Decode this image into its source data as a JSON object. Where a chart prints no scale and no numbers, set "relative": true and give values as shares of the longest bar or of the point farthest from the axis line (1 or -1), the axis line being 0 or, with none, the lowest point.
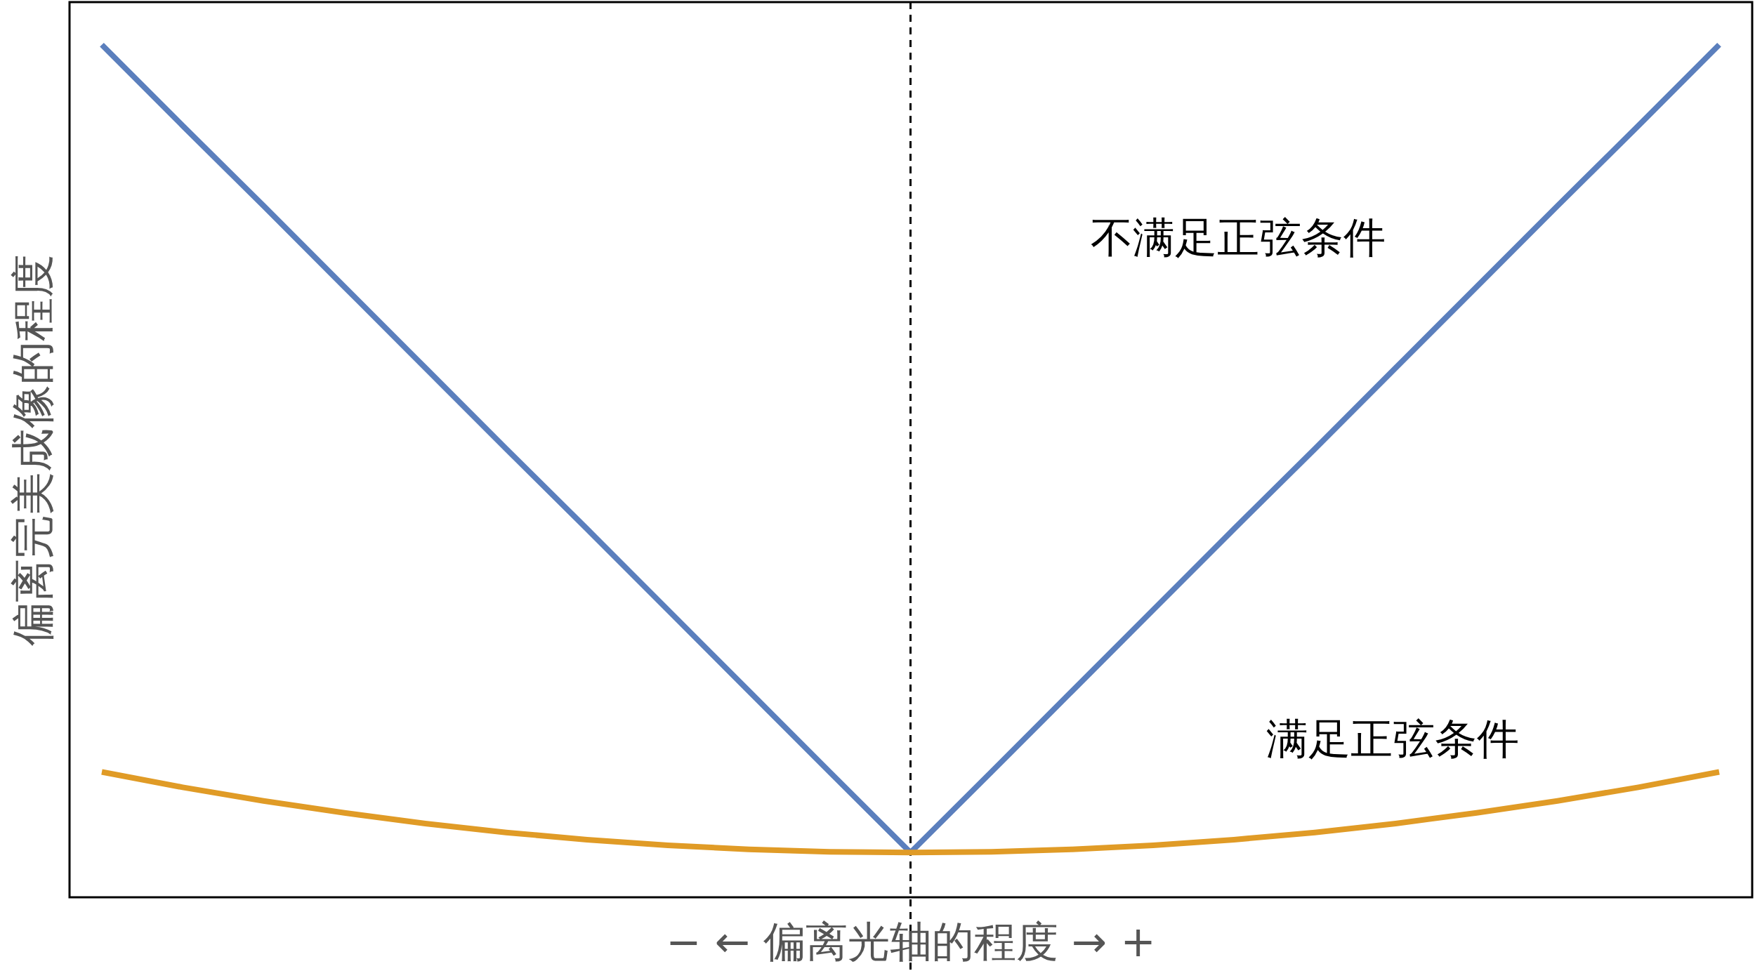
{
  "chart_data": {
    "type": "line",
    "relative": true,
    "xlabel": "− ← 偏离光轴的程度 → +",
    "ylabel": "偏离完美成像的程度",
    "categories": [
      null,
      null,
      null,
      null,
      null,
      null,
      null,
      null,
      null,
      null,
      null,
      null,
      null,
      null,
      null,
      null,
      null,
      null,
      null,
      null,
      null
    ],
    "series": [
      {
        "name": "不满足正弦条件",
        "color": "#5b7fbd",
        "values": [
          1,
          0.905,
          0.811,
          0.716,
          0.621,
          0.526,
          0.432,
          0.337,
          0.242,
          0.147,
          0.0525,
          0.147,
          0.242,
          0.337,
          0.432,
          0.526,
          0.621,
          0.716,
          0.811,
          0.905,
          1
        ]
      },
      {
        "name": "满足正弦条件",
        "color": "#e09b26",
        "values": [
          0.147,
          0.129,
          0.113,
          0.099,
          0.0865,
          0.076,
          0.0676,
          0.061,
          0.0563,
          0.0534,
          0.0525,
          0.0534,
          0.0563,
          0.061,
          0.0676,
          0.076,
          0.0865,
          0.099,
          0.113,
          0.129,
          0.147
        ]
      }
    ],
    "legend": false,
    "line_style": "solid",
    "marker": "none"
  }
}
